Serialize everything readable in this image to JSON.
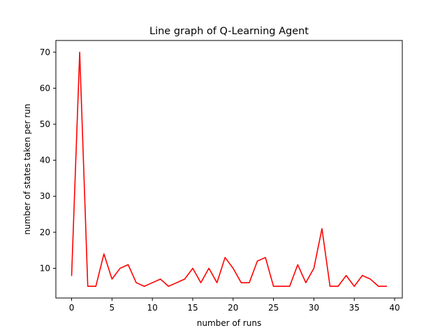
{
  "chart_data": {
    "type": "line",
    "title": "Line graph of Q-Learning Agent",
    "xlabel": "number of runs",
    "ylabel": "number of states taken per run",
    "xlim": [
      -1.95,
      40.95
    ],
    "ylim": [
      1.75,
      73.25
    ],
    "xticks": [
      0,
      5,
      10,
      15,
      20,
      25,
      30,
      35,
      40
    ],
    "yticks": [
      10,
      20,
      30,
      40,
      50,
      60,
      70
    ],
    "grid": false,
    "series": [
      {
        "color": "#ff0000",
        "x": [
          0,
          1,
          2,
          3,
          4,
          5,
          6,
          7,
          8,
          9,
          10,
          11,
          12,
          13,
          14,
          15,
          16,
          17,
          18,
          19,
          20,
          21,
          22,
          23,
          24,
          25,
          26,
          27,
          28,
          29,
          30,
          31,
          32,
          33,
          34,
          35,
          36,
          37,
          38,
          39
        ],
        "y": [
          8,
          70,
          5,
          5,
          14,
          7,
          10,
          11,
          6,
          5,
          6,
          7,
          5,
          6,
          7,
          10,
          6,
          10,
          6,
          13,
          10,
          6,
          6,
          12,
          13,
          5,
          5,
          5,
          11,
          6,
          10,
          21,
          5,
          5,
          8,
          5,
          8,
          7,
          5,
          5
        ]
      }
    ]
  }
}
